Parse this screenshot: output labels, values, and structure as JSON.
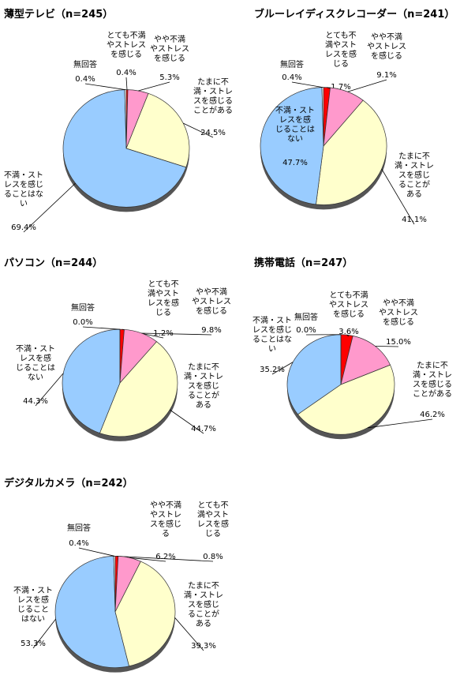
{
  "chart_data": [
    {
      "type": "pie",
      "title": "薄型テレビ（n=245）",
      "categories": [
        [
          "とても不満",
          "やストレス",
          "を感じる"
        ],
        [
          "やや不満",
          "やストレス",
          "を感じる"
        ],
        [
          "たまに不",
          "満・ストレ",
          "スを感じる",
          "ことがある"
        ],
        [
          "不満・スト",
          "レスを感じ",
          "ることはな",
          "い"
        ],
        [
          "無回答"
        ]
      ],
      "values": [
        0.4,
        5.3,
        24.5,
        69.4,
        0.4
      ],
      "value_labels": [
        "0.4%",
        "5.3%",
        "24.5%",
        "69.4%",
        "0.4%"
      ],
      "colors": [
        "#ff0000",
        "#ff99cc",
        "#ffffcc",
        "#99ccff",
        "#ffffff"
      ]
    },
    {
      "type": "pie",
      "title": "ブルーレイディスクレコーダー（n=241）",
      "categories": [
        [
          "とても不",
          "満やスト",
          "レスを感",
          "じる"
        ],
        [
          "やや不満",
          "やストレス",
          "を感じる"
        ],
        [
          "たまに不",
          "満・ストレ",
          "スを感じ",
          "ることが",
          "ある"
        ],
        [
          "不満・スト",
          "レスを感",
          "じることは",
          "ない"
        ],
        [
          "無回答"
        ]
      ],
      "values": [
        1.7,
        9.1,
        41.1,
        47.7,
        0.4
      ],
      "value_labels": [
        "1.7%",
        "9.1%",
        "41.1%",
        "47.7%",
        "0.4%"
      ],
      "colors": [
        "#ff0000",
        "#ff99cc",
        "#ffffcc",
        "#99ccff",
        "#ffffff"
      ]
    },
    {
      "type": "pie",
      "title": "パソコン（n=244）",
      "categories": [
        [
          "とても不",
          "満やスト",
          "レスを感",
          "じる"
        ],
        [
          "やや不満",
          "やストレス",
          "を感じる"
        ],
        [
          "たまに不",
          "満・ストレ",
          "スを感じ",
          "ることが",
          "ある"
        ],
        [
          "不満・スト",
          "レスを感",
          "じることは",
          "ない"
        ],
        [
          "無回答"
        ]
      ],
      "values": [
        1.2,
        9.8,
        44.7,
        44.3,
        0.0
      ],
      "value_labels": [
        "1.2%",
        "9.8%",
        "44.7%",
        "44.3%",
        "0.0%"
      ],
      "colors": [
        "#ff0000",
        "#ff99cc",
        "#ffffcc",
        "#99ccff",
        "#ffffff"
      ]
    },
    {
      "type": "pie",
      "title": "携帯電話（n=247）",
      "categories": [
        [
          "とても不満",
          "やストレス",
          "を感じる"
        ],
        [
          "やや不満",
          "やストレス",
          "を感じる"
        ],
        [
          "たまに不",
          "満・ストレ",
          "スを感じる",
          "ことがある"
        ],
        [
          "不満・スト",
          "レスを感じ",
          "ることはな",
          "い"
        ],
        [
          "無回答"
        ]
      ],
      "values": [
        3.6,
        15.0,
        46.2,
        35.2,
        0.0
      ],
      "value_labels": [
        "3.6%",
        "15.0%",
        "46.2%",
        "35.2%",
        "0.0%"
      ],
      "colors": [
        "#ff0000",
        "#ff99cc",
        "#ffffcc",
        "#99ccff",
        "#ffffff"
      ]
    },
    {
      "type": "pie",
      "title": "デジタルカメラ（n=242）",
      "categories": [
        [
          "とても不",
          "満やスト",
          "レスを感",
          "じる"
        ],
        [
          "やや不満",
          "やストレ",
          "スを感じ",
          "る"
        ],
        [
          "たまに不",
          "満・ストレ",
          "スを感じ",
          "ることが",
          "ある"
        ],
        [
          "不満・スト",
          "レスを感",
          "じること",
          "はない"
        ],
        [
          "無回答"
        ]
      ],
      "values": [
        0.8,
        6.2,
        39.3,
        53.3,
        0.4
      ],
      "value_labels": [
        "0.8%",
        "6.2%",
        "39.3%",
        "53.3%",
        "0.4%"
      ],
      "colors": [
        "#ff0000",
        "#ff99cc",
        "#ffffcc",
        "#99ccff",
        "#ffffff"
      ]
    }
  ]
}
